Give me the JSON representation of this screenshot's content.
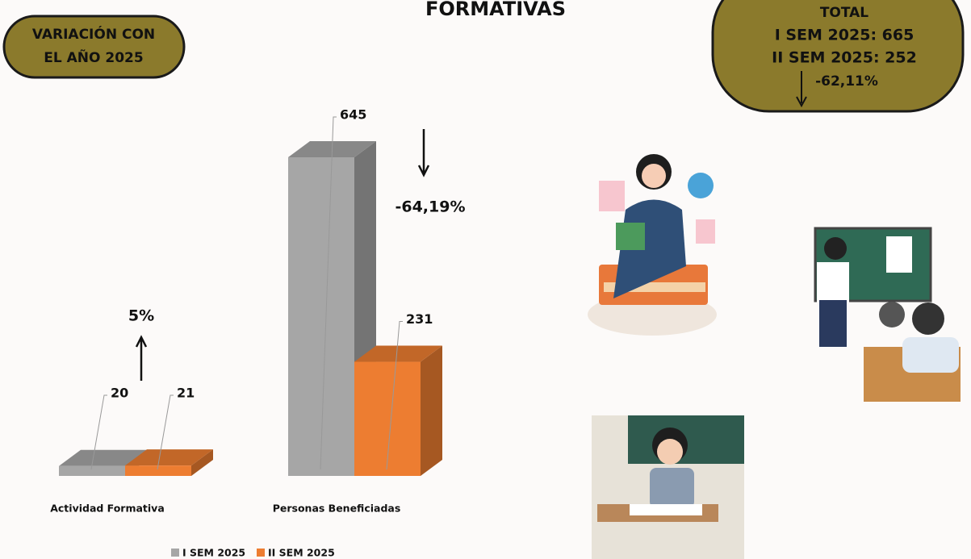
{
  "chart_data": {
    "type": "bar3d",
    "title": "FORMATIVAS",
    "categories": [
      "Actividad Formativa",
      "Personas Beneficiadas"
    ],
    "series": [
      {
        "name": "I SEM 2025",
        "color": "#a6a6a6",
        "values": [
          20,
          645
        ]
      },
      {
        "name": "II SEM 2025",
        "color": "#ed7d31",
        "values": [
          21,
          231
        ]
      }
    ],
    "annotations": [
      "5%",
      "-64,19%"
    ]
  },
  "badge": {
    "lines": [
      "VARIACIÓN CON",
      "EL AÑO 2025"
    ]
  },
  "totals": {
    "title": "TOTAL",
    "lines": [
      "I SEM 2025: 665",
      "II SEM 2025: 252",
      "-62,11%"
    ]
  }
}
